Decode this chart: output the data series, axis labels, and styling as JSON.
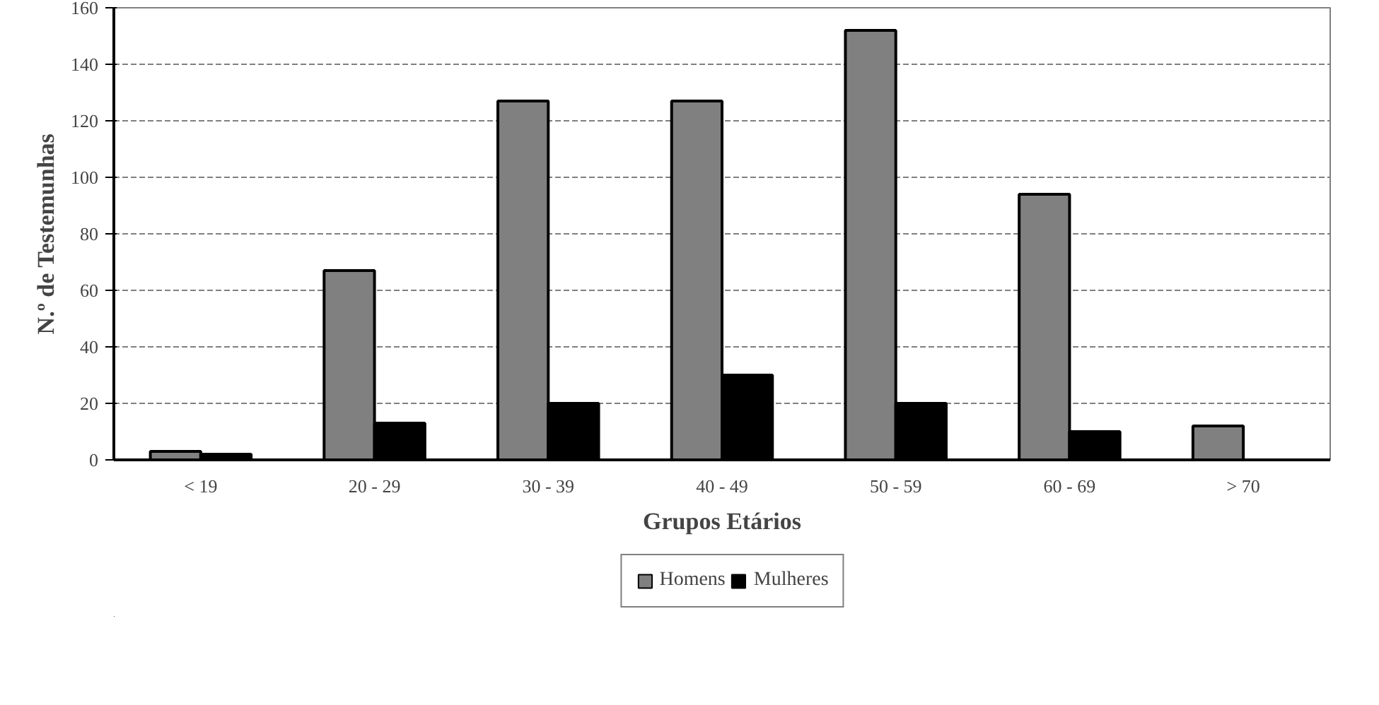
{
  "chart_data": {
    "type": "bar",
    "xlabel": "Grupos Etários",
    "ylabel": "N.º de Testemunhas",
    "categories": [
      "< 19",
      "20 - 29",
      "30 - 39",
      "40 - 49",
      "50 - 59",
      "60 - 69",
      "> 70"
    ],
    "series": [
      {
        "name": "Homens",
        "color": "#808080",
        "values": [
          3,
          67,
          127,
          127,
          152,
          94,
          12
        ]
      },
      {
        "name": "Mulheres",
        "color": "#000000",
        "values": [
          2,
          13,
          20,
          30,
          20,
          10,
          0
        ]
      }
    ],
    "ylim": [
      0,
      160
    ],
    "yticks": [
      0,
      20,
      40,
      60,
      80,
      100,
      120,
      140,
      160
    ],
    "grid": "y",
    "legend": "bottom"
  }
}
